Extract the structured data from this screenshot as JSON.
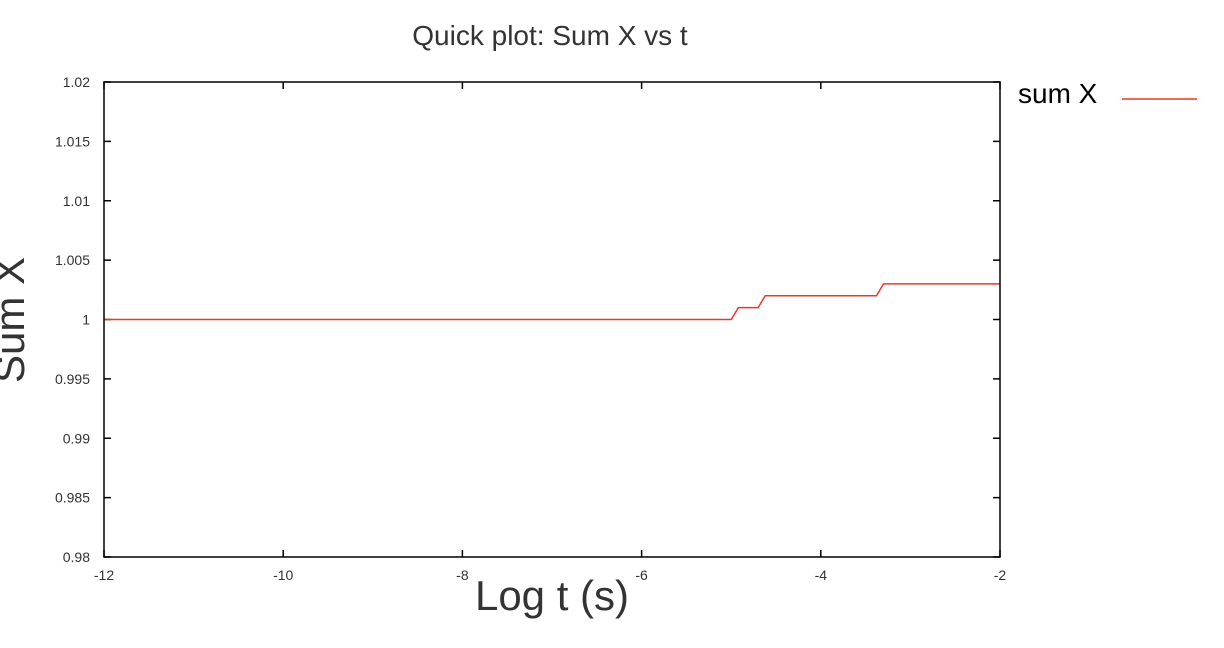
{
  "chart_data": {
    "type": "line",
    "title": "Quick plot: Sum X  vs t",
    "xlabel": "Log t (s)",
    "ylabel": "Sum X",
    "xlim": [
      -12,
      -2
    ],
    "ylim": [
      0.98,
      1.02
    ],
    "x_ticks": [
      -12,
      -10,
      -8,
      -6,
      -4,
      -2
    ],
    "x_tick_labels": [
      "-12",
      "-10",
      "-8",
      "-6",
      "-4",
      "-2"
    ],
    "y_ticks": [
      0.98,
      0.985,
      0.99,
      0.995,
      1.0,
      1.005,
      1.01,
      1.015,
      1.02
    ],
    "y_tick_labels": [
      "0.98",
      "0.985",
      "0.99",
      "0.995",
      "1",
      "1.005",
      "1.01",
      "1.015",
      "1.02"
    ],
    "grid": false,
    "legend_position": "top-right, outside plot",
    "series": [
      {
        "name": "sum X",
        "color": "#e8392a",
        "x": [
          -12,
          -5.0,
          -4.92,
          -4.7,
          -4.62,
          -3.38,
          -3.3,
          -2
        ],
        "y": [
          1.0,
          1.0,
          1.001,
          1.001,
          1.002,
          1.002,
          1.003,
          1.003
        ]
      }
    ]
  }
}
